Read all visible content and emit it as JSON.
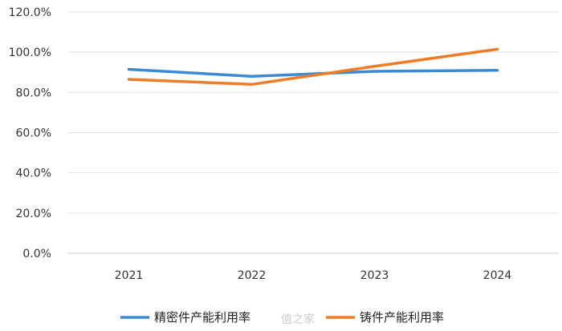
{
  "chart_data": {
    "type": "line",
    "categories": [
      "2021",
      "2022",
      "2023",
      "2024"
    ],
    "series": [
      {
        "name": "精密件产能利用率",
        "color": "#3a8ad6",
        "values": [
          91.5,
          88.0,
          90.5,
          91.0
        ]
      },
      {
        "name": "铸件产能利用率",
        "color": "#f07c25",
        "values": [
          86.5,
          84.0,
          93.0,
          101.5
        ]
      }
    ],
    "yticks": [
      "0.0%",
      "20.0%",
      "40.0%",
      "60.0%",
      "80.0%",
      "100.0%",
      "120.0%"
    ],
    "ylim": [
      0,
      120
    ],
    "title": "",
    "xlabel": "",
    "ylabel": "",
    "grid": true,
    "legend_position": "bottom"
  },
  "watermark": "值之家"
}
